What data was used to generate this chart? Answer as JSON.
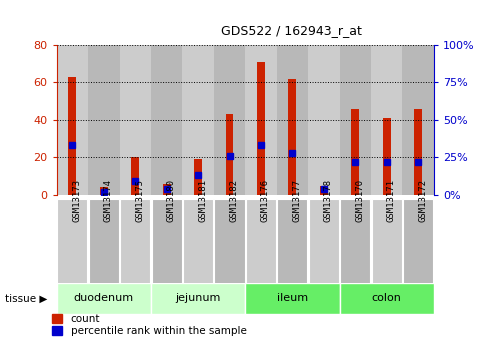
{
  "title": "GDS522 / 162943_r_at",
  "samples": [
    "GSM13173",
    "GSM13174",
    "GSM13175",
    "GSM13180",
    "GSM13181",
    "GSM13182",
    "GSM13176",
    "GSM13177",
    "GSM13178",
    "GSM13170",
    "GSM13171",
    "GSM13172"
  ],
  "count_values": [
    63,
    4,
    20,
    6,
    19,
    43,
    71,
    62,
    5,
    46,
    41,
    46
  ],
  "percentile_values": [
    33,
    2,
    9,
    4,
    13,
    26,
    33,
    28,
    4,
    22,
    22,
    22
  ],
  "groups": [
    {
      "name": "duodenum",
      "start": 0,
      "end": 3,
      "color": "#ccffcc"
    },
    {
      "name": "jejunum",
      "start": 3,
      "end": 6,
      "color": "#ccffcc"
    },
    {
      "name": "ileum",
      "start": 6,
      "end": 9,
      "color": "#66ee66"
    },
    {
      "name": "colon",
      "start": 9,
      "end": 12,
      "color": "#66ee66"
    }
  ],
  "ylim_left": [
    0,
    80
  ],
  "ylim_right": [
    0,
    100
  ],
  "yticks_left": [
    0,
    20,
    40,
    60,
    80
  ],
  "yticks_right": [
    0,
    25,
    50,
    75,
    100
  ],
  "bar_color": "#cc2200",
  "dot_color": "#0000cc",
  "legend_count": "count",
  "legend_pct": "percentile rank within the sample",
  "bg_plot": "#ffffff",
  "col_bg_even": "#cccccc",
  "col_bg_odd": "#aaaaaa"
}
